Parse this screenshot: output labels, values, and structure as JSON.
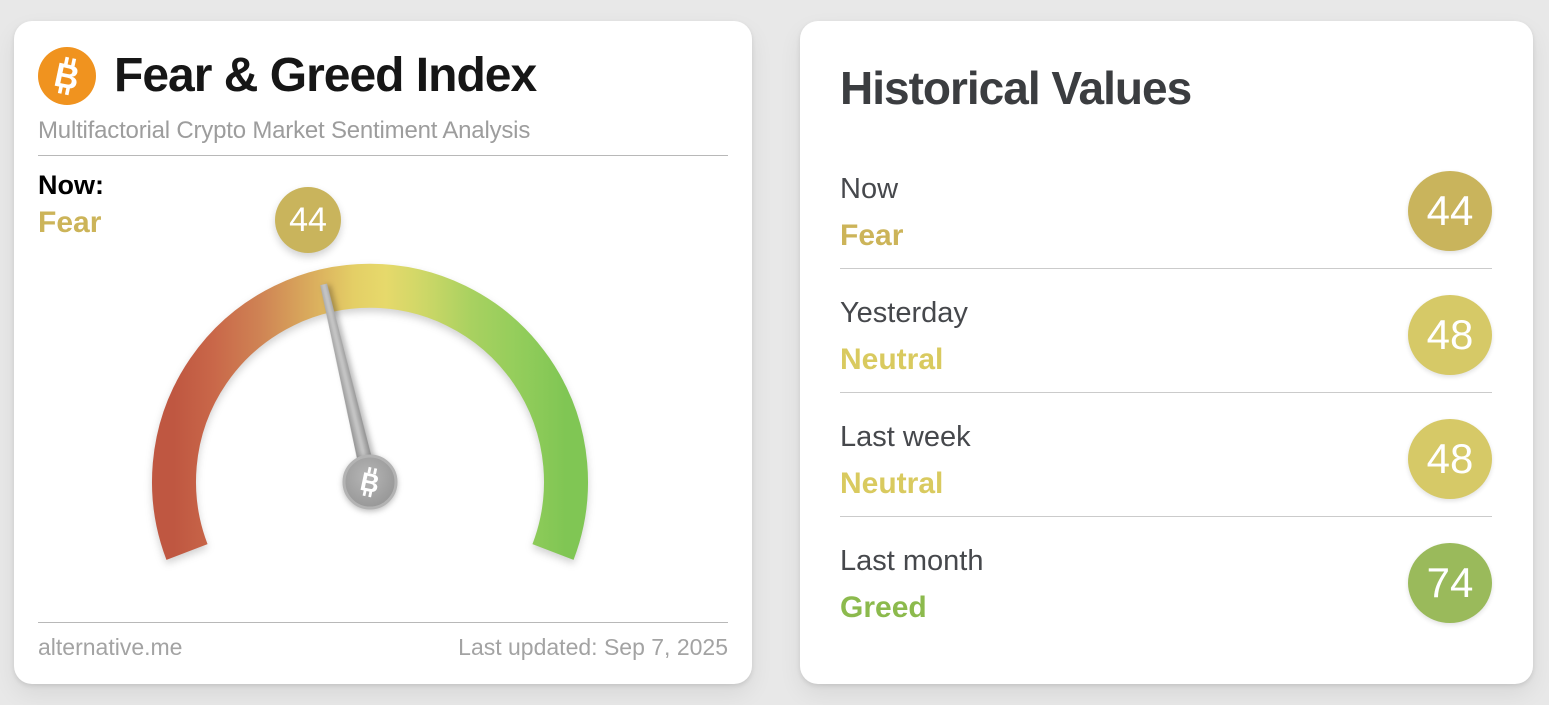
{
  "fear_greed_card": {
    "title": "Fear & Greed Index",
    "subtitle": "Multifactorial Crypto Market Sentiment Analysis",
    "now_label": "Now:",
    "now_classification": "Fear",
    "now_value": "44",
    "now_mood": "fear",
    "source": "alternative.me",
    "last_updated": "Last updated: Sep 7, 2025"
  },
  "historical_card": {
    "title": "Historical Values",
    "rows": [
      {
        "label": "Now",
        "classification": "Fear",
        "value": "44",
        "mood": "fear"
      },
      {
        "label": "Yesterday",
        "classification": "Neutral",
        "value": "48",
        "mood": "neutral"
      },
      {
        "label": "Last week",
        "classification": "Neutral",
        "value": "48",
        "mood": "neutral"
      },
      {
        "label": "Last month",
        "classification": "Greed",
        "value": "74",
        "mood": "greed"
      }
    ]
  },
  "colors": {
    "page_background": "#e8e8e8",
    "card_background": "#ffffff",
    "bitcoin_orange": "#f0931f",
    "fear_text": "#ccb459",
    "fear_badge": "#c9b45c",
    "neutral_text": "#d9ca5f",
    "neutral_badge": "#d6c967",
    "greed_text": "#8cba4d",
    "greed_badge": "#9aba5b",
    "needle_gray": "#9a9a9a",
    "gauge_gradient": [
      "#bf5741",
      "#d9a95c",
      "#e6d96b",
      "#a8d160",
      "#80c654"
    ]
  },
  "chart_data": {
    "type": "gauge",
    "title": "Fear & Greed Index",
    "value": 44,
    "classification": "Fear",
    "min": 0,
    "max": 100,
    "sweep_degrees": 220,
    "needle_points_to": 44,
    "gradient_stops": [
      "#bf5741",
      "#d9a95c",
      "#e6d96b",
      "#a8d160",
      "#80c654"
    ],
    "historical": [
      {
        "period": "Now",
        "value": 44,
        "classification": "Fear"
      },
      {
        "period": "Yesterday",
        "value": 48,
        "classification": "Neutral"
      },
      {
        "period": "Last week",
        "value": 48,
        "classification": "Neutral"
      },
      {
        "period": "Last month",
        "value": 74,
        "classification": "Greed"
      }
    ]
  }
}
